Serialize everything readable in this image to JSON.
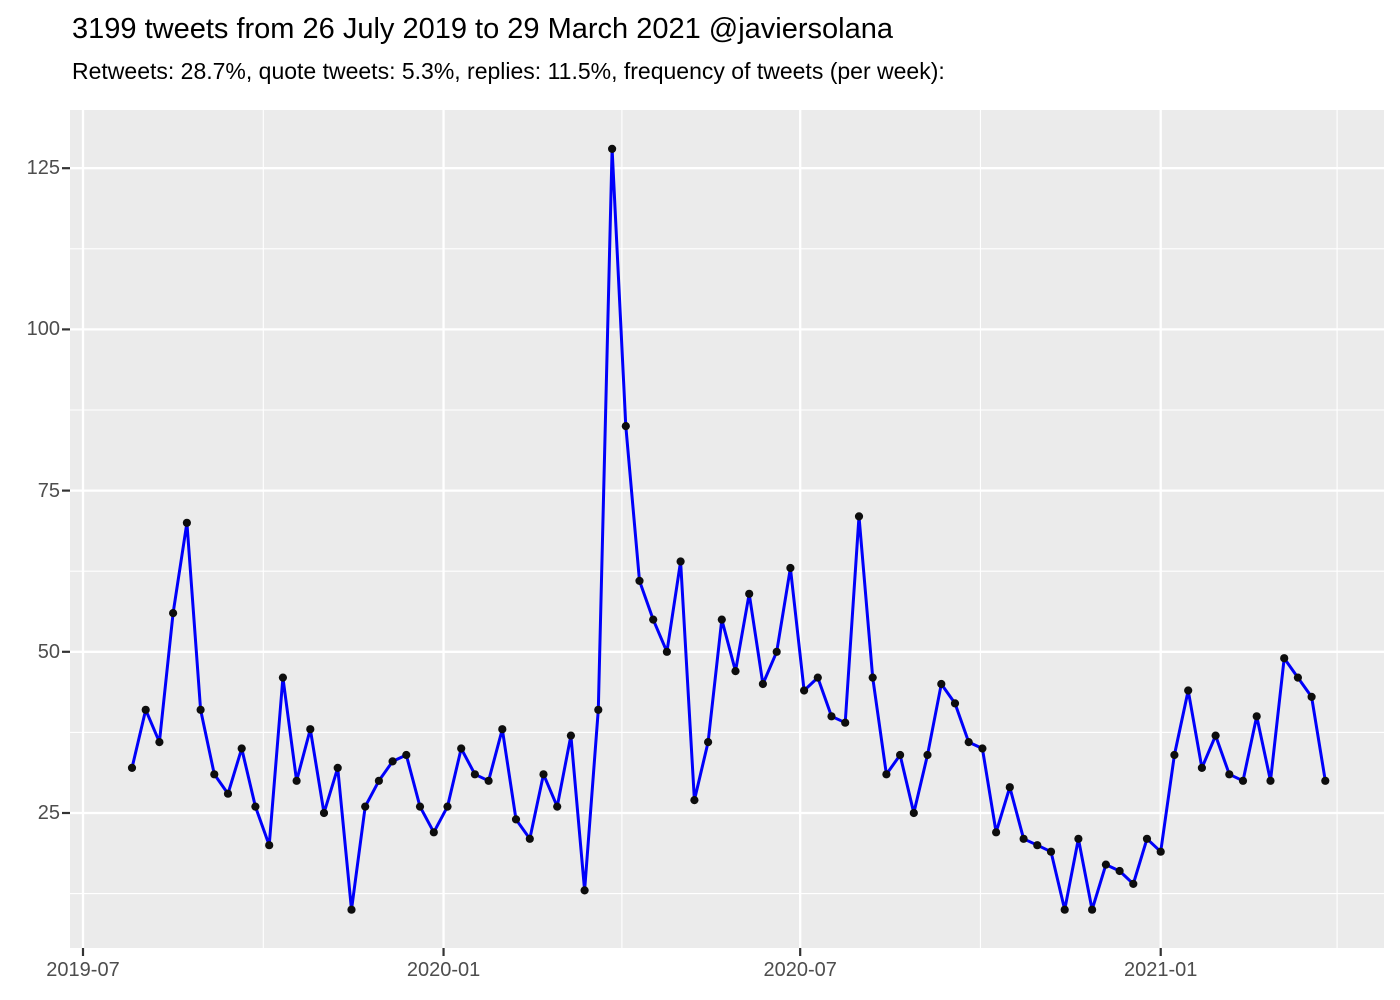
{
  "title": "3199 tweets from 26 July 2019 to 29 March 2021 @javiersolana",
  "subtitle": "Retweets: 28.7%, quote tweets: 5.3%, replies: 11.5%, frequency of tweets (per week):",
  "chart_data": {
    "type": "line",
    "series_name": "tweets per week",
    "total_tweets": 3199,
    "x": [
      "2019-07-26",
      "2019-08-02",
      "2019-08-09",
      "2019-08-16",
      "2019-08-23",
      "2019-08-30",
      "2019-09-06",
      "2019-09-13",
      "2019-09-20",
      "2019-09-27",
      "2019-10-04",
      "2019-10-11",
      "2019-10-18",
      "2019-10-25",
      "2019-11-01",
      "2019-11-08",
      "2019-11-15",
      "2019-11-22",
      "2019-11-29",
      "2019-12-06",
      "2019-12-13",
      "2019-12-20",
      "2019-12-27",
      "2020-01-03",
      "2020-01-10",
      "2020-01-17",
      "2020-01-24",
      "2020-01-31",
      "2020-02-07",
      "2020-02-14",
      "2020-02-21",
      "2020-02-28",
      "2020-03-06",
      "2020-03-13",
      "2020-03-20",
      "2020-03-27",
      "2020-04-03",
      "2020-04-10",
      "2020-04-17",
      "2020-04-24",
      "2020-05-01",
      "2020-05-08",
      "2020-05-15",
      "2020-05-22",
      "2020-05-29",
      "2020-06-05",
      "2020-06-12",
      "2020-06-19",
      "2020-06-26",
      "2020-07-03",
      "2020-07-10",
      "2020-07-17",
      "2020-07-24",
      "2020-07-31",
      "2020-08-07",
      "2020-08-14",
      "2020-08-21",
      "2020-08-28",
      "2020-09-04",
      "2020-09-11",
      "2020-09-18",
      "2020-09-25",
      "2020-10-02",
      "2020-10-09",
      "2020-10-16",
      "2020-10-23",
      "2020-10-30",
      "2020-11-06",
      "2020-11-13",
      "2020-11-20",
      "2020-11-27",
      "2020-12-04",
      "2020-12-11",
      "2020-12-18",
      "2020-12-25",
      "2021-01-01",
      "2021-01-08",
      "2021-01-15",
      "2021-01-22",
      "2021-01-29",
      "2021-02-05",
      "2021-02-12",
      "2021-02-19",
      "2021-02-26",
      "2021-03-05",
      "2021-03-12",
      "2021-03-19",
      "2021-03-26"
    ],
    "values": [
      32,
      41,
      36,
      56,
      70,
      41,
      31,
      28,
      35,
      26,
      20,
      46,
      30,
      38,
      25,
      32,
      10,
      26,
      30,
      33,
      34,
      26,
      22,
      26,
      35,
      31,
      30,
      38,
      24,
      21,
      31,
      26,
      37,
      13,
      41,
      128,
      85,
      61,
      55,
      50,
      64,
      27,
      36,
      55,
      47,
      59,
      45,
      50,
      63,
      44,
      46,
      40,
      39,
      71,
      46,
      31,
      34,
      25,
      34,
      45,
      42,
      36,
      35,
      22,
      29,
      21,
      20,
      19,
      10,
      21,
      10,
      17,
      16,
      14,
      21,
      19,
      34,
      44,
      32,
      37,
      31,
      30,
      40,
      30,
      49,
      46,
      43,
      30
    ],
    "xlabel": "",
    "ylabel": "",
    "x_axis": {
      "major_breaks": [
        {
          "label": "2019-07",
          "date": "2019-07-01"
        },
        {
          "label": "2020-01",
          "date": "2020-01-01"
        },
        {
          "label": "2020-07",
          "date": "2020-07-01"
        },
        {
          "label": "2021-01",
          "date": "2021-01-01"
        }
      ],
      "minor_breaks": [
        "2019-10-01",
        "2020-04-01",
        "2020-10-01",
        "2021-04-01"
      ]
    },
    "y_axis": {
      "major_breaks": [
        25,
        50,
        75,
        100,
        125
      ],
      "minor_breaks": [
        12.5,
        37.5,
        62.5,
        87.5,
        112.5
      ],
      "tick_labels": [
        "25",
        "50",
        "75",
        "100",
        "125"
      ]
    },
    "ylim": [
      4,
      134
    ],
    "grid": true,
    "legend": "none",
    "colors": {
      "line": "#0000fa",
      "point": "#0d0d0d",
      "panel_background": "#ebebeb",
      "grid_major": "#ffffff",
      "grid_minor": "#ffffff",
      "axis_text": "#4d4d4d",
      "tick_mark": "#333333",
      "title_text": "#000000",
      "page_background": "#ffffff"
    }
  }
}
